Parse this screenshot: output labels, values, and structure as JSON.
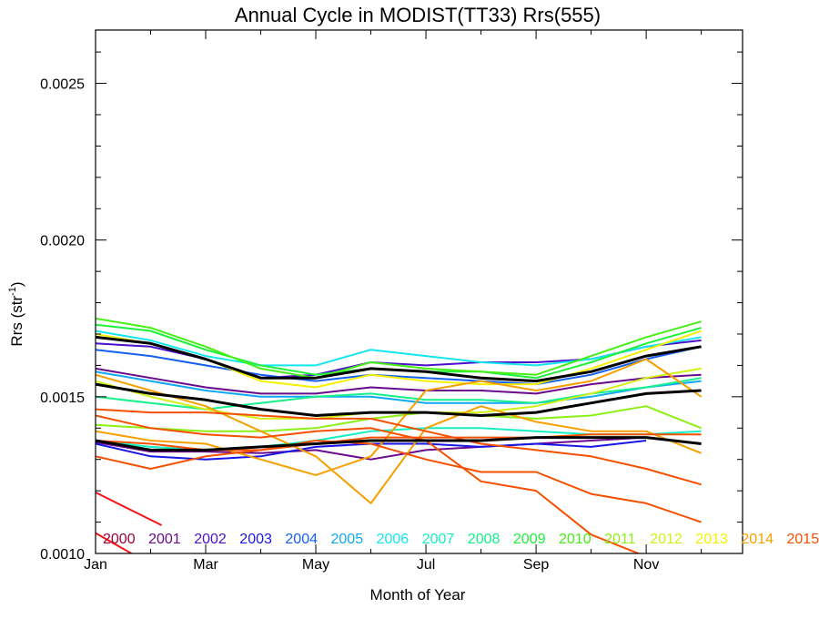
{
  "chart_data": {
    "type": "line",
    "title": "Annual Cycle in MODIST(TT33) Rrs(555)",
    "xlabel": "Month of Year",
    "ylabel_main": "Rrs (str",
    "ylabel_sup": "-1",
    "ylabel_close": ")",
    "xlim": [
      1,
      12.75
    ],
    "ylim": [
      0.001,
      0.00267
    ],
    "x_ticks": [
      {
        "value": 1,
        "label": "Jan"
      },
      {
        "value": 3,
        "label": "Mar"
      },
      {
        "value": 5,
        "label": "May"
      },
      {
        "value": 7,
        "label": "Jul"
      },
      {
        "value": 9,
        "label": "Sep"
      },
      {
        "value": 11,
        "label": "Nov"
      }
    ],
    "y_ticks": [
      {
        "value": 0.001,
        "label": "0.0010"
      },
      {
        "value": 0.0015,
        "label": "0.0015"
      },
      {
        "value": 0.002,
        "label": "0.0020"
      },
      {
        "value": 0.0025,
        "label": "0.0025"
      }
    ],
    "legend_position": "bottom",
    "legend": [
      {
        "label": "2000",
        "color": "#a0003c"
      },
      {
        "label": "2001",
        "color": "#6a0a8c"
      },
      {
        "label": "2002",
        "color": "#4b0fcc"
      },
      {
        "label": "2003",
        "color": "#1a16e6"
      },
      {
        "label": "2004",
        "color": "#1560f0"
      },
      {
        "label": "2005",
        "color": "#0fa8f5"
      },
      {
        "label": "2006",
        "color": "#14e6f0"
      },
      {
        "label": "2007",
        "color": "#14f0c3"
      },
      {
        "label": "2008",
        "color": "#14f08a"
      },
      {
        "label": "2009",
        "color": "#1ef03c"
      },
      {
        "label": "2010",
        "color": "#46f014"
      },
      {
        "label": "2011",
        "color": "#8cf014"
      },
      {
        "label": "2012",
        "color": "#d2f014"
      },
      {
        "label": "2013",
        "color": "#f5f000"
      },
      {
        "label": "2014",
        "color": "#f5a000"
      },
      {
        "label": "2015",
        "color": "#f55000"
      }
    ],
    "series": [
      {
        "color": "#f51414",
        "x": [
          1,
          2.2
        ],
        "y": [
          0.001195,
          0.00109
        ]
      },
      {
        "color": "#f51414",
        "x": [
          1,
          1.7
        ],
        "y": [
          0.001065,
          0.000995
        ]
      },
      {
        "color": "#6a0a8c",
        "x": [
          1,
          2,
          3,
          4,
          5,
          6,
          7,
          8,
          9,
          10,
          11,
          12
        ],
        "y": [
          0.001355,
          0.001325,
          0.001325,
          0.00132,
          0.00133,
          0.0013,
          0.00133,
          0.00134,
          0.00135,
          0.00136,
          0.00137,
          0.00135
        ]
      },
      {
        "color": "#6a0a8c",
        "x": [
          1,
          2,
          3,
          4,
          5,
          6,
          7,
          8,
          9,
          10,
          11,
          12
        ],
        "y": [
          0.00159,
          0.00156,
          0.00153,
          0.00151,
          0.00151,
          0.00153,
          0.00152,
          0.00152,
          0.00151,
          0.00154,
          0.00156,
          0.00157
        ]
      },
      {
        "color": "#4b0fcc",
        "x": [
          1,
          2,
          3,
          4,
          5,
          6,
          7,
          8,
          9,
          10,
          11,
          12
        ],
        "y": [
          0.00167,
          0.00166,
          0.00162,
          0.00156,
          0.00157,
          0.00161,
          0.0016,
          0.00161,
          0.00161,
          0.00162,
          0.00166,
          0.00168
        ]
      },
      {
        "color": "#1a16e6",
        "x": [
          1,
          2,
          3,
          4,
          5,
          6,
          7,
          8,
          9,
          10,
          11
        ],
        "y": [
          0.00135,
          0.00131,
          0.0013,
          0.00131,
          0.00134,
          0.00135,
          0.00135,
          0.00134,
          0.00135,
          0.00134,
          0.00136
        ]
      },
      {
        "color": "#1560f0",
        "x": [
          1,
          2,
          3,
          4,
          5,
          6,
          7,
          8,
          9,
          10,
          11,
          12
        ],
        "y": [
          0.00165,
          0.00163,
          0.0016,
          0.00157,
          0.00155,
          0.00157,
          0.00156,
          0.00155,
          0.00154,
          0.00157,
          0.00162,
          0.00166
        ]
      },
      {
        "color": "#0fa8f5",
        "x": [
          1,
          2,
          3,
          4,
          5,
          6,
          7,
          8,
          9,
          10,
          11,
          12
        ],
        "y": [
          0.00158,
          0.00155,
          0.00152,
          0.0015,
          0.0015,
          0.0015,
          0.00148,
          0.00148,
          0.00148,
          0.0015,
          0.00153,
          0.00155
        ]
      },
      {
        "color": "#14e6f0",
        "x": [
          1,
          2,
          3,
          4,
          5,
          6,
          7,
          8,
          9,
          10,
          11,
          12
        ],
        "y": [
          0.00171,
          0.00168,
          0.00163,
          0.0016,
          0.0016,
          0.00165,
          0.00163,
          0.00161,
          0.0016,
          0.00162,
          0.00166,
          0.00169
        ]
      },
      {
        "color": "#14f0c3",
        "x": [
          1,
          2,
          3,
          4,
          5,
          6,
          7,
          8,
          9,
          10,
          11,
          12
        ],
        "y": [
          0.00136,
          0.00134,
          0.00133,
          0.00134,
          0.00136,
          0.00139,
          0.0014,
          0.0014,
          0.00139,
          0.00138,
          0.00138,
          0.00139
        ]
      },
      {
        "color": "#14f08a",
        "x": [
          1,
          2,
          3,
          4,
          5,
          6,
          7,
          8,
          9,
          10,
          11,
          12
        ],
        "y": [
          0.0015,
          0.00148,
          0.00146,
          0.00148,
          0.0015,
          0.00151,
          0.00149,
          0.00149,
          0.00148,
          0.00151,
          0.00153,
          0.00156
        ]
      },
      {
        "color": "#1ef03c",
        "x": [
          1,
          2,
          3,
          4,
          5,
          6,
          7,
          8,
          9,
          10,
          11,
          12
        ],
        "y": [
          0.00173,
          0.00171,
          0.00165,
          0.0016,
          0.00157,
          0.00159,
          0.00158,
          0.00158,
          0.00156,
          0.00161,
          0.00167,
          0.00172
        ]
      },
      {
        "color": "#46f014",
        "x": [
          1,
          2,
          3,
          4,
          5,
          6,
          7,
          8,
          9,
          10,
          11,
          12
        ],
        "y": [
          0.00175,
          0.00172,
          0.00166,
          0.00159,
          0.00156,
          0.00161,
          0.00159,
          0.00158,
          0.00157,
          0.00163,
          0.00169,
          0.00174
        ]
      },
      {
        "color": "#8cf014",
        "x": [
          1,
          2,
          3,
          4,
          5,
          6,
          7,
          8,
          9,
          10,
          11,
          12
        ],
        "y": [
          0.00141,
          0.0014,
          0.00139,
          0.00139,
          0.0014,
          0.00143,
          0.00145,
          0.00144,
          0.00143,
          0.00144,
          0.00147,
          0.0014
        ]
      },
      {
        "color": "#d2f014",
        "x": [
          1,
          2,
          3,
          4,
          5,
          6,
          7,
          8,
          9,
          10,
          11,
          12
        ],
        "y": [
          0.00155,
          0.0015,
          0.00146,
          0.00143,
          0.00143,
          0.00145,
          0.00145,
          0.00145,
          0.00147,
          0.00151,
          0.00156,
          0.00159
        ]
      },
      {
        "color": "#f5f000",
        "x": [
          1,
          2,
          3,
          4,
          5,
          6,
          7,
          8,
          9,
          10,
          11,
          12
        ],
        "y": [
          0.0017,
          0.00167,
          0.00162,
          0.00155,
          0.00153,
          0.00157,
          0.00155,
          0.00154,
          0.00154,
          0.00159,
          0.00165,
          0.00171
        ]
      },
      {
        "color": "#f5a000",
        "x": [
          1,
          2,
          3,
          4,
          5,
          6,
          7,
          8,
          9,
          10,
          11,
          12
        ],
        "y": [
          0.00157,
          0.00152,
          0.00147,
          0.00139,
          0.00131,
          0.00116,
          0.0014,
          0.00147,
          0.00142,
          0.00139,
          0.00139,
          0.00132
        ]
      },
      {
        "color": "#f5a000",
        "x": [
          1,
          2,
          3,
          4,
          5,
          6,
          7,
          8,
          9,
          10,
          11,
          12
        ],
        "y": [
          0.00139,
          0.00136,
          0.00135,
          0.0013,
          0.00125,
          0.00131,
          0.00152,
          0.00155,
          0.00152,
          0.00155,
          0.00162,
          0.0015
        ]
      },
      {
        "color": "#f55000",
        "x": [
          1,
          2,
          3,
          4,
          5,
          6,
          7,
          8,
          9,
          10,
          11,
          12
        ],
        "y": [
          0.00131,
          0.00127,
          0.00131,
          0.00133,
          0.00136,
          0.00135,
          0.0013,
          0.00126,
          0.00126,
          0.00119,
          0.00116,
          0.0011
        ]
      },
      {
        "color": "#f55000",
        "x": [
          1,
          2,
          3,
          4,
          5,
          6,
          7,
          8,
          9,
          10,
          11,
          12
        ],
        "y": [
          0.00146,
          0.00145,
          0.00145,
          0.00144,
          0.00143,
          0.00143,
          0.00139,
          0.00135,
          0.00133,
          0.00131,
          0.00127,
          0.00122
        ]
      },
      {
        "color": "#f55000",
        "x": [
          1,
          2,
          3,
          4,
          5,
          6,
          7,
          8,
          9,
          10,
          11
        ],
        "y": [
          0.00144,
          0.0014,
          0.00138,
          0.00137,
          0.00139,
          0.0014,
          0.00136,
          0.00123,
          0.0012,
          0.00106,
          0.00099
        ]
      },
      {
        "color": "#f55000",
        "x": [
          1,
          2,
          3,
          4,
          5,
          6,
          7,
          8,
          9,
          10,
          11,
          12
        ],
        "y": [
          0.00136,
          0.00135,
          0.00133,
          0.00133,
          0.00135,
          0.00137,
          0.00137,
          0.00137,
          0.00137,
          0.00138,
          0.00138,
          0.00138
        ]
      },
      {
        "color": "#000000",
        "x": [
          1,
          2,
          3,
          4,
          5,
          6,
          7,
          8,
          9,
          10,
          11,
          12
        ],
        "y": [
          0.00169,
          0.00167,
          0.00162,
          0.00156,
          0.00156,
          0.00159,
          0.00158,
          0.00156,
          0.00155,
          0.00158,
          0.00163,
          0.00166
        ]
      },
      {
        "color": "#000000",
        "x": [
          1,
          2,
          3,
          4,
          5,
          6,
          7,
          8,
          9,
          10,
          11,
          12
        ],
        "y": [
          0.00154,
          0.00151,
          0.00149,
          0.00146,
          0.00144,
          0.00145,
          0.00145,
          0.00144,
          0.00145,
          0.00148,
          0.00151,
          0.00152
        ]
      },
      {
        "color": "#000000",
        "x": [
          1,
          2,
          3,
          4,
          5,
          6,
          7,
          8,
          9,
          10,
          11,
          12
        ],
        "y": [
          0.00136,
          0.00133,
          0.00133,
          0.00134,
          0.00135,
          0.00136,
          0.00136,
          0.00136,
          0.00137,
          0.00137,
          0.00137,
          0.00135
        ]
      }
    ]
  }
}
